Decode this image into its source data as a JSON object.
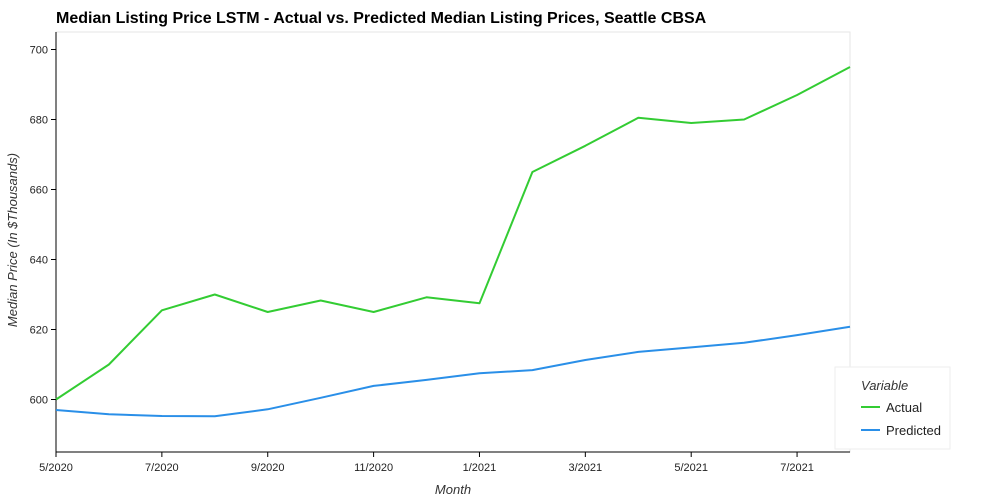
{
  "chart_data": {
    "type": "line",
    "title": "Median Listing Price LSTM - Actual vs. Predicted Median Listing Prices, Seattle CBSA",
    "xlabel": "Month",
    "ylabel": "Median Price (In $Thousands)",
    "x": [
      "5/2020",
      "6/2020",
      "7/2020",
      "8/2020",
      "9/2020",
      "10/2020",
      "11/2020",
      "12/2020",
      "1/2021",
      "2/2021",
      "3/2021",
      "4/2021",
      "5/2021",
      "6/2021",
      "7/2021",
      "8/2021"
    ],
    "x_ticks": [
      "5/2020",
      "7/2020",
      "9/2020",
      "11/2020",
      "1/2021",
      "3/2021",
      "5/2021",
      "7/2021"
    ],
    "y_ticks": [
      600,
      620,
      640,
      660,
      680,
      700
    ],
    "ylim": [
      585,
      705
    ],
    "grid": false,
    "legend": {
      "title": "Variable",
      "position": "right"
    },
    "series": [
      {
        "name": "Actual",
        "color": "#33cc33",
        "values": [
          600,
          610,
          625.5,
          630,
          625,
          628.3,
          625,
          629.2,
          627.5,
          665,
          672.5,
          680.5,
          679,
          680,
          687,
          695
        ]
      },
      {
        "name": "Predicted",
        "color": "#2a8fe8",
        "values": [
          597,
          595.8,
          595.3,
          595.2,
          597.2,
          600.5,
          603.9,
          605.6,
          607.5,
          608.4,
          611.3,
          613.6,
          614.9,
          616.2,
          618.4,
          620.8
        ]
      }
    ]
  }
}
